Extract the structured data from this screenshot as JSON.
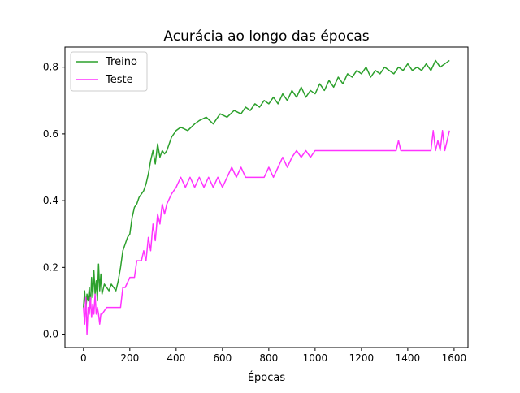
{
  "chart_data": {
    "type": "line",
    "title": "Acurácia ao longo das épocas",
    "xlabel": "Épocas",
    "ylabel": "",
    "xlim": [
      -80,
      1660
    ],
    "ylim": [
      -0.04,
      0.86
    ],
    "xticks": [
      0,
      200,
      400,
      600,
      800,
      1000,
      1200,
      1400,
      1600
    ],
    "yticks": [
      0.0,
      0.2,
      0.4,
      0.6,
      0.8
    ],
    "xtick_labels": [
      "0",
      "200",
      "400",
      "600",
      "800",
      "1000",
      "1200",
      "1400",
      "1600"
    ],
    "ytick_labels": [
      "0.0",
      "0.2",
      "0.4",
      "0.6",
      "0.8"
    ],
    "grid": false,
    "legend_position": "upper-left",
    "series": [
      {
        "name": "Treino",
        "color": "#2ca02c",
        "x": [
          0,
          5,
          10,
          15,
          20,
          25,
          30,
          35,
          40,
          45,
          50,
          55,
          60,
          65,
          70,
          75,
          80,
          90,
          100,
          110,
          120,
          130,
          140,
          150,
          160,
          170,
          180,
          190,
          200,
          210,
          220,
          230,
          240,
          250,
          260,
          270,
          280,
          290,
          300,
          310,
          320,
          330,
          340,
          350,
          360,
          380,
          400,
          420,
          450,
          480,
          500,
          530,
          560,
          590,
          620,
          650,
          680,
          700,
          720,
          740,
          760,
          780,
          800,
          820,
          840,
          860,
          880,
          900,
          920,
          940,
          960,
          980,
          1000,
          1020,
          1040,
          1060,
          1080,
          1100,
          1120,
          1140,
          1160,
          1180,
          1200,
          1220,
          1240,
          1260,
          1280,
          1300,
          1320,
          1340,
          1360,
          1380,
          1400,
          1420,
          1440,
          1460,
          1480,
          1500,
          1520,
          1540,
          1560,
          1580
        ],
        "y": [
          0.08,
          0.13,
          0.07,
          0.12,
          0.1,
          0.14,
          0.08,
          0.17,
          0.11,
          0.19,
          0.12,
          0.16,
          0.1,
          0.21,
          0.13,
          0.18,
          0.12,
          0.15,
          0.14,
          0.13,
          0.15,
          0.14,
          0.13,
          0.16,
          0.2,
          0.25,
          0.27,
          0.29,
          0.3,
          0.35,
          0.38,
          0.39,
          0.41,
          0.42,
          0.43,
          0.45,
          0.48,
          0.52,
          0.55,
          0.51,
          0.57,
          0.53,
          0.55,
          0.54,
          0.55,
          0.59,
          0.61,
          0.62,
          0.61,
          0.63,
          0.64,
          0.65,
          0.63,
          0.66,
          0.65,
          0.67,
          0.66,
          0.68,
          0.67,
          0.69,
          0.68,
          0.7,
          0.69,
          0.71,
          0.69,
          0.72,
          0.7,
          0.73,
          0.71,
          0.74,
          0.71,
          0.73,
          0.72,
          0.75,
          0.73,
          0.76,
          0.74,
          0.77,
          0.75,
          0.78,
          0.77,
          0.79,
          0.78,
          0.8,
          0.77,
          0.79,
          0.78,
          0.8,
          0.79,
          0.78,
          0.8,
          0.79,
          0.81,
          0.79,
          0.8,
          0.79,
          0.81,
          0.79,
          0.82,
          0.8,
          0.81,
          0.82
        ]
      },
      {
        "name": "Teste",
        "color": "#ff33ff",
        "x": [
          0,
          5,
          10,
          15,
          20,
          25,
          30,
          35,
          40,
          45,
          50,
          55,
          60,
          65,
          70,
          75,
          80,
          100,
          120,
          140,
          160,
          170,
          180,
          200,
          220,
          230,
          240,
          250,
          260,
          270,
          280,
          290,
          300,
          310,
          320,
          330,
          340,
          350,
          360,
          380,
          400,
          420,
          440,
          460,
          480,
          500,
          520,
          540,
          560,
          580,
          600,
          620,
          640,
          660,
          680,
          700,
          720,
          740,
          760,
          780,
          800,
          820,
          840,
          860,
          880,
          900,
          920,
          940,
          960,
          980,
          1000,
          1050,
          1100,
          1150,
          1200,
          1250,
          1300,
          1350,
          1360,
          1370,
          1400,
          1450,
          1500,
          1510,
          1520,
          1530,
          1540,
          1550,
          1560,
          1570,
          1580
        ],
        "y": [
          0.08,
          0.03,
          0.11,
          0.0,
          0.08,
          0.06,
          0.11,
          0.05,
          0.09,
          0.06,
          0.12,
          0.06,
          0.08,
          0.06,
          0.03,
          0.06,
          0.06,
          0.08,
          0.08,
          0.08,
          0.08,
          0.14,
          0.14,
          0.17,
          0.17,
          0.22,
          0.22,
          0.22,
          0.25,
          0.22,
          0.29,
          0.25,
          0.33,
          0.28,
          0.36,
          0.33,
          0.39,
          0.36,
          0.39,
          0.42,
          0.44,
          0.47,
          0.44,
          0.47,
          0.44,
          0.47,
          0.44,
          0.47,
          0.44,
          0.47,
          0.44,
          0.47,
          0.5,
          0.47,
          0.5,
          0.47,
          0.47,
          0.47,
          0.47,
          0.47,
          0.5,
          0.47,
          0.5,
          0.53,
          0.5,
          0.53,
          0.55,
          0.53,
          0.55,
          0.53,
          0.55,
          0.55,
          0.55,
          0.55,
          0.55,
          0.55,
          0.55,
          0.55,
          0.58,
          0.55,
          0.55,
          0.55,
          0.55,
          0.61,
          0.55,
          0.58,
          0.55,
          0.61,
          0.55,
          0.58,
          0.61
        ]
      }
    ]
  }
}
